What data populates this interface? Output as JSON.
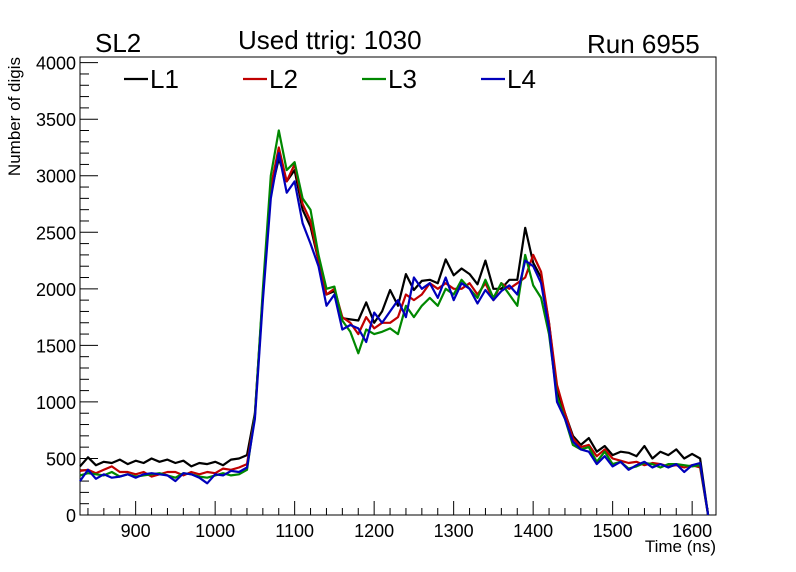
{
  "header": {
    "left_label": "SL2",
    "center_label": "Used ttrig: 1030",
    "right_label": "Run 6955"
  },
  "chart_data": {
    "type": "line",
    "title": "Used ttrig: 1030",
    "xlabel": "Time (ns)",
    "ylabel": "Number of digis",
    "xlim": [
      830,
      1630
    ],
    "ylim": [
      0,
      4050
    ],
    "xticks": [
      900,
      1000,
      1100,
      1200,
      1300,
      1400,
      1500,
      1600
    ],
    "yticks": [
      0,
      500,
      1000,
      1500,
      2000,
      2500,
      3000,
      3500,
      4000
    ],
    "grid": false,
    "legend": "top-left, horizontal",
    "x": [
      830,
      840,
      850,
      860,
      870,
      880,
      890,
      900,
      910,
      920,
      930,
      940,
      950,
      960,
      970,
      980,
      990,
      1000,
      1010,
      1020,
      1030,
      1040,
      1050,
      1060,
      1070,
      1080,
      1090,
      1100,
      1110,
      1120,
      1130,
      1140,
      1150,
      1160,
      1170,
      1180,
      1190,
      1200,
      1210,
      1220,
      1230,
      1240,
      1250,
      1260,
      1270,
      1280,
      1290,
      1300,
      1310,
      1320,
      1330,
      1340,
      1350,
      1360,
      1370,
      1380,
      1390,
      1400,
      1410,
      1420,
      1430,
      1440,
      1450,
      1460,
      1470,
      1480,
      1490,
      1500,
      1510,
      1520,
      1530,
      1540,
      1550,
      1560,
      1570,
      1580,
      1590,
      1600,
      1610,
      1620
    ],
    "series": [
      {
        "name": "L1",
        "color": "#000000",
        "values": [
          430,
          510,
          440,
          470,
          460,
          490,
          450,
          480,
          460,
          500,
          470,
          490,
          460,
          480,
          430,
          460,
          450,
          470,
          440,
          490,
          500,
          530,
          900,
          1950,
          2850,
          3150,
          2950,
          3050,
          2700,
          2550,
          2250,
          1950,
          1980,
          1740,
          1730,
          1720,
          1880,
          1700,
          1800,
          1990,
          1850,
          2130,
          1990,
          2070,
          2080,
          2050,
          2260,
          2120,
          2180,
          2130,
          2040,
          2250,
          2000,
          2000,
          2080,
          2080,
          2540,
          2230,
          2100,
          1700,
          1100,
          900,
          700,
          620,
          680,
          560,
          610,
          530,
          560,
          550,
          520,
          610,
          500,
          560,
          530,
          580,
          500,
          540,
          500,
          0
        ]
      },
      {
        "name": "L2",
        "color": "#c00000",
        "values": [
          390,
          400,
          370,
          400,
          430,
          380,
          380,
          360,
          380,
          340,
          360,
          380,
          380,
          350,
          380,
          360,
          380,
          370,
          410,
          400,
          420,
          450,
          880,
          1950,
          2900,
          3250,
          2950,
          3100,
          2750,
          2600,
          2250,
          1950,
          2000,
          1750,
          1700,
          1600,
          1750,
          1650,
          1700,
          1700,
          1750,
          1950,
          1900,
          1950,
          2050,
          2000,
          2050,
          2000,
          2000,
          2050,
          1950,
          2050,
          1900,
          2050,
          2000,
          2050,
          2100,
          2300,
          2150,
          1700,
          1150,
          900,
          680,
          600,
          620,
          520,
          580,
          500,
          480,
          460,
          470,
          440,
          460,
          450,
          430,
          440,
          420,
          440,
          420,
          0
        ]
      },
      {
        "name": "L3",
        "color": "#008800",
        "values": [
          350,
          370,
          360,
          350,
          380,
          340,
          360,
          340,
          350,
          360,
          370,
          350,
          330,
          370,
          360,
          340,
          330,
          350,
          370,
          350,
          360,
          400,
          880,
          2000,
          3000,
          3400,
          3050,
          3120,
          2800,
          2700,
          2300,
          2000,
          2020,
          1720,
          1620,
          1430,
          1640,
          1600,
          1620,
          1650,
          1600,
          1850,
          1750,
          1850,
          1920,
          1850,
          2000,
          1950,
          2080,
          2000,
          1920,
          2080,
          1920,
          2050,
          1950,
          1850,
          2300,
          2030,
          1920,
          1600,
          1050,
          850,
          620,
          580,
          600,
          470,
          560,
          450,
          470,
          410,
          430,
          460,
          450,
          420,
          450,
          450,
          440,
          430,
          440,
          0
        ]
      },
      {
        "name": "L4",
        "color": "#0000bb",
        "values": [
          300,
          400,
          320,
          360,
          330,
          340,
          360,
          330,
          360,
          370,
          360,
          350,
          300,
          370,
          360,
          330,
          280,
          360,
          350,
          390,
          380,
          420,
          850,
          1900,
          2800,
          3200,
          2850,
          2950,
          2580,
          2400,
          2200,
          1850,
          1950,
          1640,
          1680,
          1650,
          1530,
          1790,
          1700,
          1800,
          1900,
          1750,
          2100,
          2000,
          2050,
          1920,
          2100,
          1900,
          2050,
          2000,
          1870,
          1990,
          1900,
          1980,
          2030,
          1950,
          2250,
          2200,
          2050,
          1650,
          1000,
          850,
          650,
          580,
          560,
          450,
          520,
          430,
          470,
          400,
          440,
          470,
          420,
          450,
          420,
          450,
          380,
          440,
          460,
          0
        ]
      }
    ]
  }
}
